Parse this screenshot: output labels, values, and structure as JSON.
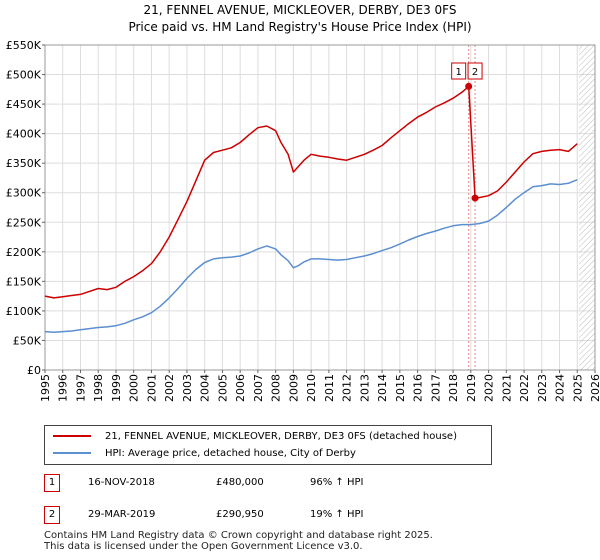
{
  "chart_data": {
    "type": "line",
    "title": "21, FENNEL AVENUE, MICKLEOVER, DERBY, DE3 0FS",
    "subtitle": "Price paid vs. HM Land Registry's House Price Index (HPI)",
    "xlabel": "",
    "ylabel": "",
    "xlim": [
      1995,
      2026
    ],
    "ylim": [
      0,
      550000
    ],
    "grid": true,
    "x_ticks": [
      1995,
      1996,
      1997,
      1998,
      1999,
      2000,
      2001,
      2002,
      2003,
      2004,
      2005,
      2006,
      2007,
      2008,
      2009,
      2010,
      2011,
      2012,
      2013,
      2014,
      2015,
      2016,
      2017,
      2018,
      2019,
      2020,
      2021,
      2022,
      2023,
      2024,
      2025,
      2026
    ],
    "x_tick_labels": [
      "1995",
      "1996",
      "1997",
      "1998",
      "1999",
      "2000",
      "2001",
      "2002",
      "2003",
      "2004",
      "2005",
      "2006",
      "2007",
      "2008",
      "2009",
      "2010",
      "2011",
      "2012",
      "2013",
      "2014",
      "2015",
      "2016",
      "2017",
      "2018",
      "2019",
      "2020",
      "2021",
      "2022",
      "2023",
      "2024",
      "2025",
      "2026"
    ],
    "y_ticks": [
      0,
      50000,
      100000,
      150000,
      200000,
      250000,
      300000,
      350000,
      400000,
      450000,
      500000,
      550000
    ],
    "y_tick_labels": [
      "£0",
      "£50K",
      "£100K",
      "£150K",
      "£200K",
      "£250K",
      "£300K",
      "£350K",
      "£400K",
      "£450K",
      "£500K",
      "£550K"
    ],
    "hatch_from": 2025.1,
    "series": [
      {
        "name": "21, FENNEL AVENUE, MICKLEOVER, DERBY, DE3 0FS (detached house)",
        "color": "#cc0000",
        "x": [
          1995.0,
          1995.5,
          1996.0,
          1996.5,
          1997.0,
          1997.5,
          1998.0,
          1998.5,
          1999.0,
          1999.5,
          2000.0,
          2000.5,
          2001.0,
          2001.5,
          2002.0,
          2002.5,
          2003.0,
          2003.5,
          2004.0,
          2004.5,
          2005.0,
          2005.5,
          2006.0,
          2006.5,
          2007.0,
          2007.5,
          2008.0,
          2008.3,
          2008.7,
          2009.0,
          2009.3,
          2009.6,
          2010.0,
          2010.5,
          2011.0,
          2011.5,
          2012.0,
          2012.5,
          2013.0,
          2013.5,
          2014.0,
          2014.5,
          2015.0,
          2015.5,
          2016.0,
          2016.5,
          2017.0,
          2017.5,
          2018.0,
          2018.5,
          2018.88,
          2018.881,
          2019.24,
          2019.5,
          2020.0,
          2020.5,
          2021.0,
          2021.5,
          2022.0,
          2022.5,
          2023.0,
          2023.5,
          2024.0,
          2024.5,
          2025.0
        ],
        "values": [
          125000,
          122000,
          124000,
          126000,
          128000,
          133000,
          138000,
          136000,
          140000,
          150000,
          158000,
          168000,
          180000,
          200000,
          225000,
          255000,
          285000,
          320000,
          355000,
          368000,
          372000,
          376000,
          385000,
          398000,
          410000,
          413000,
          405000,
          385000,
          365000,
          335000,
          345000,
          355000,
          365000,
          362000,
          360000,
          357000,
          355000,
          360000,
          365000,
          372000,
          380000,
          393000,
          405000,
          417000,
          428000,
          436000,
          445000,
          452000,
          460000,
          470000,
          480000,
          480000,
          290950,
          292000,
          295000,
          303000,
          318000,
          335000,
          352000,
          366000,
          370000,
          372000,
          373000,
          370000,
          383000
        ]
      },
      {
        "name": "HPI: Average price, detached house, City of Derby",
        "color": "#5b8fd0",
        "x": [
          1995.0,
          1995.5,
          1996.0,
          1996.5,
          1997.0,
          1997.5,
          1998.0,
          1998.5,
          1999.0,
          1999.5,
          2000.0,
          2000.5,
          2001.0,
          2001.5,
          2002.0,
          2002.5,
          2003.0,
          2003.5,
          2004.0,
          2004.5,
          2005.0,
          2005.5,
          2006.0,
          2006.5,
          2007.0,
          2007.5,
          2008.0,
          2008.3,
          2008.7,
          2009.0,
          2009.3,
          2009.6,
          2010.0,
          2010.5,
          2011.0,
          2011.5,
          2012.0,
          2012.5,
          2013.0,
          2013.5,
          2014.0,
          2014.5,
          2015.0,
          2015.5,
          2016.0,
          2016.5,
          2017.0,
          2017.5,
          2018.0,
          2018.5,
          2019.0,
          2019.5,
          2020.0,
          2020.5,
          2021.0,
          2021.5,
          2022.0,
          2022.5,
          2023.0,
          2023.5,
          2024.0,
          2024.5,
          2025.0
        ],
        "values": [
          65000,
          64000,
          65000,
          66000,
          68000,
          70000,
          72000,
          73000,
          75000,
          79000,
          85000,
          90000,
          97000,
          108000,
          122000,
          138000,
          155000,
          170000,
          182000,
          188000,
          190000,
          191000,
          193000,
          198000,
          205000,
          210000,
          205000,
          195000,
          185000,
          173000,
          177000,
          183000,
          188000,
          188000,
          187000,
          186000,
          187000,
          190000,
          193000,
          197000,
          202000,
          207000,
          213000,
          220000,
          226000,
          231000,
          235000,
          240000,
          244000,
          246000,
          246000,
          248000,
          252000,
          262000,
          275000,
          289000,
          300000,
          310000,
          312000,
          315000,
          314000,
          316000,
          322000
        ]
      }
    ],
    "sales": [
      {
        "n": "1",
        "x": 2018.88,
        "value": 480000,
        "label_dx": -10
      },
      {
        "n": "2",
        "x": 2019.24,
        "value": 290950,
        "label_dx": 0
      }
    ]
  },
  "legend": {
    "items": [
      {
        "label": "21, FENNEL AVENUE, MICKLEOVER, DERBY, DE3 0FS (detached house)",
        "color": "#cc0000"
      },
      {
        "label": "HPI: Average price, detached house, City of Derby",
        "color": "#5b8fd0"
      }
    ]
  },
  "sales_table": [
    {
      "n": "1",
      "date": "16-NOV-2018",
      "price": "£480,000",
      "hpi": "96% ↑ HPI"
    },
    {
      "n": "2",
      "date": "29-MAR-2019",
      "price": "£290,950",
      "hpi": "19% ↑ HPI"
    }
  ],
  "footer": {
    "line1": "Contains HM Land Registry data © Crown copyright and database right 2025.",
    "line2": "This data is licensed under the Open Government Licence v3.0."
  }
}
